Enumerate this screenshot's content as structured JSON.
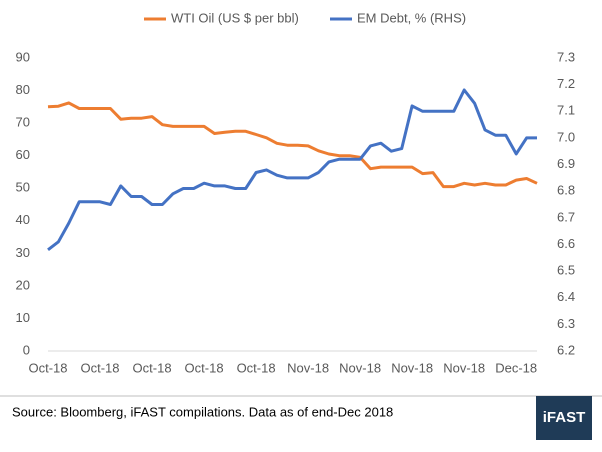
{
  "chart_data": {
    "type": "line",
    "categories": [
      "Oct-18",
      null,
      null,
      null,
      null,
      "Oct-18",
      null,
      null,
      null,
      null,
      "Oct-18",
      null,
      null,
      null,
      null,
      "Oct-18",
      null,
      null,
      null,
      null,
      "Oct-18",
      null,
      null,
      null,
      null,
      "Nov-18",
      null,
      null,
      null,
      null,
      "Nov-18",
      null,
      null,
      null,
      null,
      "Nov-18",
      null,
      null,
      null,
      null,
      "Nov-18",
      null,
      null,
      null,
      null,
      "Dec-18",
      null,
      null
    ],
    "series": [
      {
        "name": "WTI Oil (US $ per bbl)",
        "color": "#ED7D31",
        "values": [
          75,
          75.2,
          76.2,
          74.5,
          74.5,
          74.5,
          74.5,
          71.2,
          71.5,
          71.5,
          72,
          69.5,
          69,
          69,
          69,
          69,
          66.8,
          67.2,
          67.5,
          67.5,
          66.5,
          65.5,
          63.8,
          63.2,
          63.2,
          63,
          61.5,
          60.5,
          60,
          60,
          59.5,
          56,
          56.5,
          56.5,
          56.5,
          56.5,
          54.5,
          54.8,
          50.5,
          50.5,
          51.5,
          51,
          51.5,
          51,
          51,
          52.5,
          53,
          51.5
        ]
      },
      {
        "name": "EM Debt, % (RHS)",
        "color": "#4472C4",
        "axis": "y2",
        "values": [
          6.58,
          6.61,
          6.68,
          6.76,
          6.76,
          6.76,
          6.75,
          6.82,
          6.78,
          6.78,
          6.75,
          6.75,
          6.79,
          6.81,
          6.81,
          6.83,
          6.82,
          6.82,
          6.81,
          6.81,
          6.87,
          6.88,
          6.86,
          6.85,
          6.85,
          6.85,
          6.87,
          6.91,
          6.92,
          6.92,
          6.92,
          6.97,
          6.98,
          6.95,
          6.96,
          7.12,
          7.1,
          7.1,
          7.1,
          7.1,
          7.18,
          7.13,
          7.03,
          7.01,
          7.01,
          6.94,
          7.0,
          7.0
        ]
      }
    ],
    "ylim": [
      0,
      90
    ],
    "yticks": [
      0,
      10,
      20,
      30,
      40,
      50,
      60,
      70,
      80,
      90
    ],
    "y2lim": [
      6.2,
      7.3
    ],
    "y2ticks": [
      6.2,
      6.3,
      6.4,
      6.5,
      6.6,
      6.7,
      6.8,
      6.9,
      {
        "value": 7,
        "label": "7.0"
      },
      7.1,
      7.2,
      7.3
    ],
    "legend": "top",
    "grid": false
  },
  "footer": {
    "source": "Source: Bloomberg, iFAST compilations. Data as of end-Dec 2018",
    "logo": "iFAST"
  }
}
